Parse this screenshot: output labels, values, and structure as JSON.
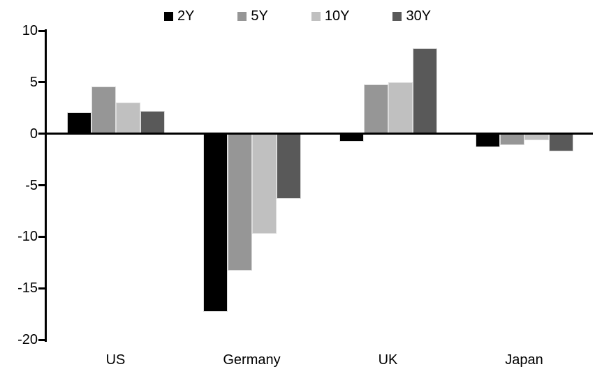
{
  "chart_data": {
    "type": "bar",
    "title": "",
    "categories": [
      "US",
      "Germany",
      "UK",
      "Japan"
    ],
    "series": [
      {
        "name": "2Y",
        "color": "#000000",
        "values": [
          2.1,
          -17.3,
          -0.8,
          -1.3
        ]
      },
      {
        "name": "5Y",
        "color": "#969696",
        "values": [
          4.6,
          -13.3,
          4.8,
          -1.1
        ]
      },
      {
        "name": "10Y",
        "color": "#c0c0c0",
        "values": [
          3.0,
          -9.7,
          5.0,
          -0.6
        ]
      },
      {
        "name": "30Y",
        "color": "#595959",
        "values": [
          2.2,
          -6.3,
          8.3,
          -1.7
        ]
      }
    ],
    "yticks": [
      "10",
      "5",
      "0",
      "-5",
      "-10",
      "-15",
      "-20"
    ],
    "ylim": [
      -20,
      10
    ],
    "xlabel": "",
    "ylabel": "",
    "legend_position": "top",
    "grid": false,
    "axis_color": "#000000",
    "background": "#ffffff"
  }
}
